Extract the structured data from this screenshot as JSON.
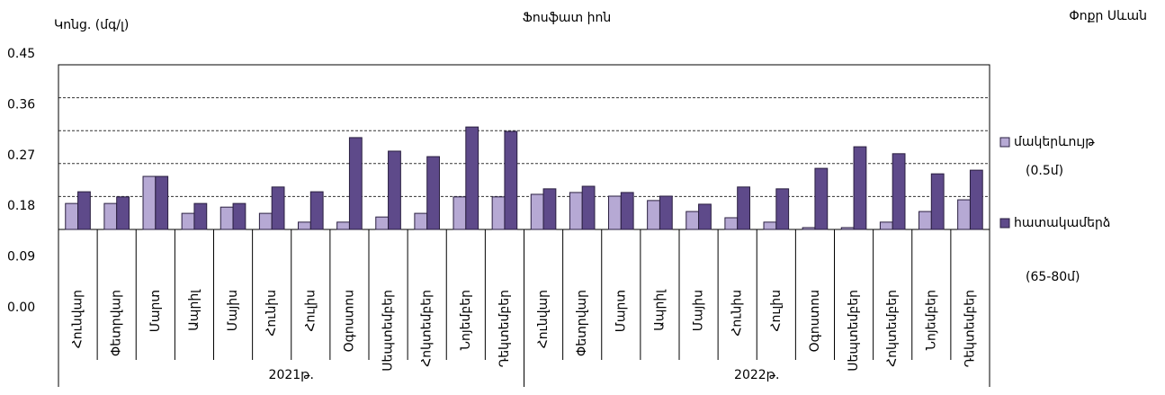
{
  "chart_data": {
    "type": "bar",
    "title": "Ֆոսֆատ իոն",
    "y_label": "Կոնց. (մգ/լ)",
    "corner_label": "Փոքր Սևան",
    "categories": [
      "Հունվար",
      "Փետրվար",
      "Մարտ",
      "Ապրիլ",
      "Մայիս",
      "Հունիս",
      "Հուլիս",
      "Օգոստոս",
      "Սեպտեմբեր",
      "Հոկտեմբեր",
      "Նոյեմբեր",
      "Դեկտեմբեր",
      "Հունվար",
      "Փետրվար",
      "Մարտ",
      "Ապրիլ",
      "Մայիս",
      "Հունիս",
      "Հուլիս",
      "Օգոստոս",
      "Սեպտեմբեր",
      "Հոկտեմբեր",
      "Նոյեմբեր",
      "Դեկտեմբեր"
    ],
    "year_labels": [
      "2021թ.",
      "2022թ."
    ],
    "series": [
      {
        "name": [
          "մակերևույթ",
          "(0.5մ)"
        ],
        "color": "#b6a9d4",
        "values": [
          0.071,
          0.071,
          0.145,
          0.044,
          0.061,
          0.044,
          0.02,
          0.02,
          0.034,
          0.044,
          0.089,
          0.089,
          0.096,
          0.101,
          0.091,
          0.079,
          0.049,
          0.032,
          0.02,
          0.005,
          0.005,
          0.02,
          0.049,
          0.081
        ]
      },
      {
        "name": [
          "հատակամերձ",
          "(65-80մ)"
        ],
        "color": "#5e4a8a",
        "values": [
          0.103,
          0.089,
          0.145,
          0.071,
          0.071,
          0.116,
          0.103,
          0.251,
          0.214,
          0.199,
          0.28,
          0.268,
          0.111,
          0.118,
          0.101,
          0.091,
          0.069,
          0.116,
          0.111,
          0.167,
          0.226,
          0.207,
          0.152,
          0.162
        ]
      }
    ],
    "ylim": [
      0,
      0.45
    ],
    "yticks": [
      0.45,
      0.36,
      0.27,
      0.18,
      0.09,
      {
        "value": 0,
        "label": "0.00"
      }
    ],
    "grid": true
  }
}
